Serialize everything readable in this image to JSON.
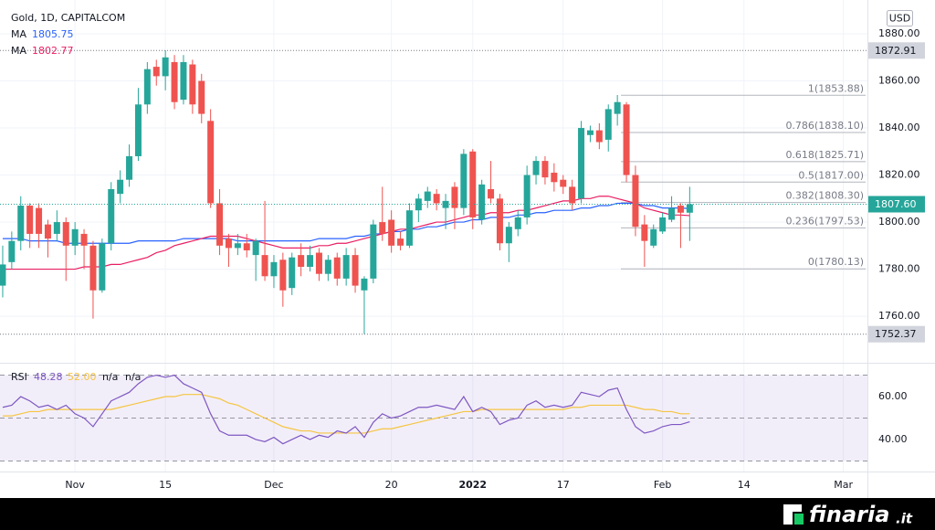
{
  "chart_data": {
    "type": "candlestick",
    "title": "Gold, 1D, CAPITALCOM",
    "currency": "USD",
    "up_color": "#26a69a",
    "down_color": "#ef5350",
    "grid": true,
    "categories": [
      null,
      null,
      null,
      null,
      null,
      null,
      null,
      null,
      "Nov",
      null,
      null,
      null,
      null,
      null,
      null,
      null,
      null,
      null,
      "15",
      null,
      null,
      null,
      null,
      null,
      null,
      null,
      null,
      null,
      null,
      null,
      "Dec",
      null,
      null,
      null,
      null,
      null,
      null,
      null,
      null,
      null,
      null,
      null,
      null,
      "20",
      null,
      null,
      null,
      null,
      null,
      null,
      null,
      null,
      "2022",
      null,
      null,
      null,
      null,
      null,
      null,
      null,
      null,
      null,
      "17",
      null,
      null,
      null,
      null,
      null,
      null,
      null,
      null,
      null,
      null,
      "Feb",
      null,
      null,
      null,
      null,
      null,
      null,
      null,
      null,
      "14",
      null,
      null,
      null,
      null,
      null,
      null,
      null,
      null,
      null,
      null,
      "Mar",
      null,
      null
    ],
    "open": [
      1773,
      1783,
      1792,
      1807,
      1806,
      1799,
      1795,
      1800,
      1790,
      1795,
      1790,
      1771,
      1791,
      1812,
      1818,
      1828,
      1850,
      1866,
      1862,
      1868,
      1852,
      1867,
      1860,
      1843,
      1808,
      1793,
      1789,
      1791,
      1786,
      1786,
      1777,
      1784,
      1772,
      1786,
      1781,
      1787,
      1778,
      1785,
      1776,
      1786,
      1771,
      1776,
      1800,
      1801,
      1793,
      1790,
      1805,
      1809,
      1812,
      1806,
      1815,
      1806,
      1830,
      1801,
      1814,
      1810,
      1791,
      1797,
      1802,
      1820,
      1826,
      1821,
      1818,
      1815,
      1810,
      1837,
      1839,
      1835,
      1846,
      1850,
      1820,
      1799,
      1790,
      1796,
      1801,
      1807,
      1804,
      null,
      null,
      null,
      null,
      null,
      null,
      null,
      null,
      null,
      null,
      null,
      null,
      null,
      null,
      null,
      null,
      null,
      null,
      null
    ],
    "high": [
      1790,
      1796,
      1811,
      1808,
      1808,
      1801,
      1805,
      1802,
      1800,
      1797,
      1792,
      1793,
      1817,
      1822,
      1833,
      1857,
      1868,
      1869,
      1873,
      1871,
      1871,
      1869,
      1863,
      1848,
      1814,
      1795,
      1795,
      1795,
      1793,
      1809,
      1786,
      1787,
      1787,
      1791,
      1790,
      1789,
      1786,
      1787,
      1789,
      1789,
      1777,
      1801,
      1815,
      1805,
      1796,
      1808,
      1812,
      1815,
      1814,
      1812,
      1817,
      1831,
      1831,
      1818,
      1826,
      1812,
      1800,
      1805,
      1824,
      1828,
      1828,
      1825,
      1820,
      1818,
      1843,
      1841,
      1842,
      1850,
      1854,
      1851,
      1824,
      1803,
      1799,
      1804,
      1811,
      1808,
      1815,
      null,
      null,
      null,
      null,
      null,
      null,
      null,
      null,
      null,
      null,
      null,
      null,
      null,
      null,
      null,
      null,
      null,
      null,
      null
    ],
    "low": [
      1768,
      1780,
      1788,
      1789,
      1789,
      1785,
      1792,
      1775,
      1786,
      1780,
      1759,
      1770,
      1788,
      1808,
      1815,
      1826,
      1846,
      1858,
      1856,
      1848,
      1850,
      1846,
      1842,
      1806,
      1786,
      1781,
      1786,
      1785,
      1775,
      1775,
      1772,
      1764,
      1769,
      1777,
      1779,
      1775,
      1775,
      1773,
      1773,
      1770,
      1752.4,
      1774,
      1792,
      1787,
      1788,
      1789,
      1800,
      1806,
      1805,
      1797,
      1797,
      1803,
      1797,
      1799,
      1808,
      1788,
      1783,
      1794,
      1799,
      1816,
      1816,
      1813,
      1812,
      1805,
      1808,
      1834,
      1831,
      1830,
      1841,
      1817,
      1794,
      1781,
      1789,
      1795,
      1800,
      1789,
      1792,
      null,
      null,
      null,
      null,
      null,
      null,
      null,
      null,
      null,
      null,
      null,
      null,
      null,
      null,
      null,
      null,
      null,
      null,
      null
    ],
    "close": [
      1782,
      1792,
      1807,
      1795,
      1795,
      1793,
      1800,
      1790,
      1797,
      1790,
      1771,
      1791,
      1814,
      1818,
      1828,
      1850,
      1865,
      1862,
      1870,
      1851,
      1868,
      1850,
      1846,
      1808,
      1790,
      1789,
      1791,
      1788,
      1792,
      1777,
      1783,
      1771,
      1785,
      1781,
      1786,
      1778,
      1784,
      1776,
      1786,
      1773,
      1776,
      1799,
      1795,
      1790,
      1790,
      1805,
      1810,
      1813,
      1808,
      1809,
      1806,
      1829,
      1802,
      1816,
      1810,
      1791,
      1798,
      1802,
      1820,
      1826,
      1819,
      1817,
      1815,
      1808,
      1840,
      1839,
      1834,
      1848,
      1851,
      1820,
      1798,
      1792,
      1797,
      1802,
      1806,
      1804,
      1807.6,
      null,
      null,
      null,
      null,
      null,
      null,
      null,
      null,
      null,
      null,
      null,
      null,
      null,
      null,
      null,
      null,
      null,
      null,
      null
    ],
    "ylim": [
      1741,
      1890.5
    ],
    "yticks": [
      {
        "value": 1760,
        "label": "1760.00"
      },
      {
        "value": 1780,
        "label": "1780.00"
      },
      {
        "value": 1800,
        "label": "1800.00"
      },
      {
        "value": 1820,
        "label": "1820.00"
      },
      {
        "value": 1840,
        "label": "1840.00"
      },
      {
        "value": 1860,
        "label": "1860.00"
      },
      {
        "value": 1880,
        "label": "1880.00"
      }
    ],
    "overlays": [
      {
        "name": "MA",
        "color": "#2962ff",
        "values": [
          1793,
          1793,
          1793,
          1792,
          1792,
          1792,
          1792,
          1791,
          1791,
          1791,
          1791,
          1791,
          1791,
          1791,
          1791,
          1792,
          1792,
          1792,
          1792,
          1792,
          1793,
          1793,
          1793,
          1793,
          1793,
          1793,
          1792,
          1792,
          1792,
          1792,
          1792,
          1792,
          1792,
          1792,
          1792,
          1793,
          1793,
          1793,
          1793,
          1794,
          1794,
          1795,
          1795,
          1796,
          1796,
          1797,
          1797,
          1798,
          1798,
          1799,
          1800,
          1800,
          1801,
          1801,
          1802,
          1802,
          1802,
          1803,
          1803,
          1804,
          1804,
          1805,
          1805,
          1805,
          1806,
          1806,
          1807,
          1807,
          1808,
          1808,
          1808,
          1807,
          1807,
          1806,
          1806,
          1806,
          1805.75,
          null,
          null,
          null,
          null,
          null,
          null,
          null,
          null,
          null,
          null,
          null,
          null,
          null,
          null,
          null,
          null,
          null,
          null,
          null
        ]
      },
      {
        "name": "MA",
        "color": "#e91e63",
        "values": [
          1780,
          1780,
          1780,
          1780,
          1780,
          1780,
          1780,
          1780,
          1780,
          1781,
          1781,
          1781,
          1782,
          1782,
          1783,
          1784,
          1785,
          1787,
          1788,
          1790,
          1791,
          1792,
          1793,
          1794,
          1794,
          1794,
          1794,
          1793,
          1792,
          1791,
          1790,
          1789,
          1789,
          1789,
          1789,
          1790,
          1790,
          1791,
          1791,
          1792,
          1793,
          1794,
          1795,
          1796,
          1797,
          1797,
          1798,
          1799,
          1800,
          1800,
          1801,
          1802,
          1803,
          1803,
          1804,
          1804,
          1804,
          1805,
          1805,
          1806,
          1807,
          1808,
          1809,
          1809,
          1810,
          1810,
          1811,
          1811,
          1810,
          1809,
          1808,
          1806,
          1805,
          1804,
          1803,
          1803,
          1802.77,
          null,
          null,
          null,
          null,
          null,
          null,
          null,
          null,
          null,
          null,
          null,
          null,
          null,
          null,
          null,
          null,
          null,
          null,
          null
        ]
      }
    ],
    "price_lines": [
      1872.91,
      1752.37
    ],
    "last_price": {
      "value": 1807.6,
      "label": "1807.60"
    },
    "fib_levels": [
      {
        "value": 1853.88,
        "label": "1(1853.88)"
      },
      {
        "value": 1838.1,
        "label": "0.786(1838.10)"
      },
      {
        "value": 1825.71,
        "label": "0.618(1825.71)"
      },
      {
        "value": 1817,
        "label": "0.5(1817.00)"
      },
      {
        "value": 1808.3,
        "label": "0.382(1808.30)"
      },
      {
        "value": 1797.53,
        "label": "0.236(1797.53)"
      },
      {
        "value": 1780.13,
        "label": "0(1780.13)"
      }
    ],
    "rsi": {
      "name": "RSI",
      "ylim": [
        25.5,
        74.5
      ],
      "yticks": [
        {
          "value": 40,
          "label": "40.00"
        },
        {
          "value": 60,
          "label": "60.00"
        }
      ],
      "levels": [
        70,
        50,
        30
      ],
      "extras": [
        "n/a",
        "n/a"
      ],
      "series": [
        {
          "color": "#7e57c2",
          "values": [
            55,
            56,
            60,
            58,
            55,
            56,
            54,
            56,
            52,
            50,
            46,
            52,
            58,
            60,
            62,
            66,
            69,
            70,
            69,
            70,
            66,
            64,
            62,
            52,
            44,
            42,
            42,
            42,
            40,
            39,
            41,
            38,
            40,
            42,
            40,
            42,
            41,
            44,
            43,
            46,
            41,
            48,
            52,
            50,
            51,
            53,
            55,
            55,
            56,
            55,
            54,
            60,
            53,
            55,
            53,
            47,
            49,
            50,
            56,
            58,
            55,
            56,
            55,
            56,
            62,
            61,
            60,
            63,
            64,
            54,
            46,
            43,
            44,
            46,
            47,
            47,
            48.28,
            null,
            null,
            null,
            null,
            null,
            null,
            null,
            null,
            null,
            null,
            null,
            null,
            null,
            null,
            null,
            null,
            null,
            null,
            null
          ]
        },
        {
          "color": "#f5c542",
          "values": [
            51,
            51,
            52,
            53,
            53,
            54,
            54,
            54,
            54,
            54,
            54,
            54,
            54,
            55,
            56,
            57,
            58,
            59,
            60,
            60,
            61,
            61,
            61,
            60,
            59,
            57,
            56,
            54,
            52,
            50,
            48,
            46,
            45,
            44,
            44,
            43,
            43,
            43,
            43,
            43,
            43,
            44,
            45,
            45,
            46,
            47,
            48,
            49,
            50,
            51,
            52,
            53,
            53,
            54,
            54,
            54,
            54,
            54,
            54,
            54,
            54,
            54,
            54,
            55,
            55,
            56,
            56,
            56,
            56,
            56,
            55,
            54,
            54,
            53,
            53,
            52,
            52,
            null,
            null,
            null,
            null,
            null,
            null,
            null,
            null,
            null,
            null,
            null,
            null,
            null,
            null,
            null,
            null,
            null,
            null,
            null
          ],
          "value_labels": [
            null,
            null,
            null,
            null,
            null,
            null,
            null,
            null,
            null,
            null,
            null,
            null,
            null,
            null,
            null,
            null,
            null,
            null,
            null,
            null,
            null,
            null,
            null,
            null,
            null,
            null,
            null,
            null,
            null,
            null,
            null,
            null,
            null,
            null,
            null,
            null,
            null,
            null,
            null,
            null,
            null,
            null,
            null,
            null,
            null,
            null,
            null,
            null,
            null,
            null,
            null,
            null,
            null,
            null,
            null,
            null,
            null,
            null,
            null,
            null,
            null,
            null,
            null,
            null,
            null,
            null,
            null,
            null,
            null,
            null,
            null,
            null,
            null,
            null,
            null,
            null,
            "52.00",
            null,
            null,
            null,
            null,
            null,
            null,
            null,
            null,
            null,
            null,
            null,
            null,
            null,
            null,
            null,
            null,
            null,
            null,
            null
          ]
        }
      ]
    }
  },
  "footer": {
    "brand": "finaria",
    "suffix": ".it"
  }
}
